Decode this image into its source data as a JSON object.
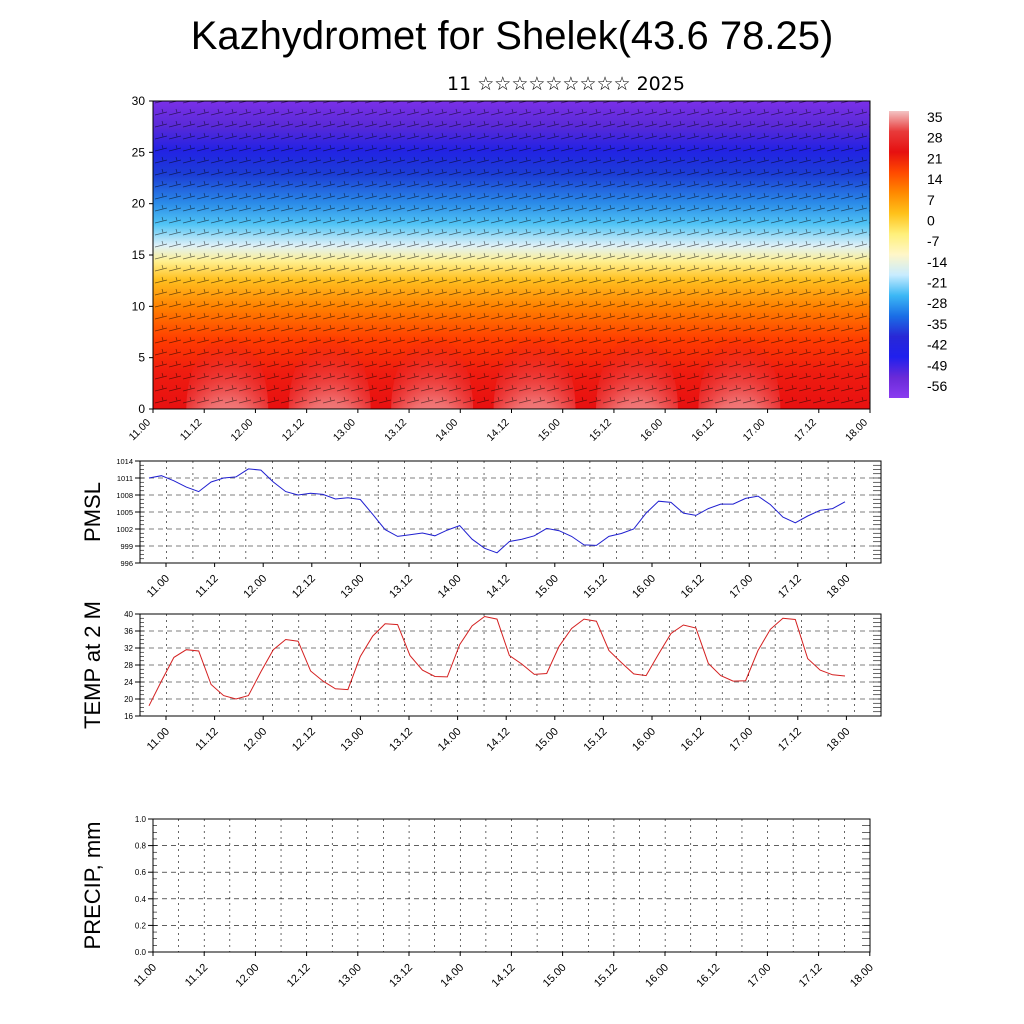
{
  "title": "Kazhydromet for Shelek(43.6 78.25)",
  "subtitle": "11 ☆☆☆☆☆☆☆☆☆ 2025",
  "x_tick_labels": [
    "11.00",
    "11.12",
    "12.00",
    "12.12",
    "13.00",
    "13.12",
    "14.00",
    "14.12",
    "15.00",
    "15.12",
    "16.00",
    "16.12",
    "17.00",
    "17.12",
    "18.00"
  ],
  "colors": {
    "pmsl_line": "#1f1fd0",
    "temp_line": "#d42020",
    "precip_line": "#1a3a1a",
    "frame": "#000000",
    "grid": "#000000"
  },
  "colorbar": {
    "labels": [
      "35",
      "28",
      "21",
      "14",
      "7",
      "0",
      "-7",
      "-14",
      "-21",
      "-28",
      "-35",
      "-42",
      "-49",
      "-56"
    ],
    "stops": [
      "#f3c4c4",
      "#e83a3a",
      "#e61010",
      "#ff4a00",
      "#ff8a00",
      "#ffc21a",
      "#fff07a",
      "#fff6c8",
      "#c8ecff",
      "#3cb8f5",
      "#1a6ee6",
      "#2828d6",
      "#2020ee",
      "#6a2ad8",
      "#8a3cf0"
    ]
  },
  "chart_data": [
    {
      "type": "heatmap",
      "name": "cross-section",
      "ylim": [
        0,
        30
      ],
      "y_ticks": [
        0,
        5,
        10,
        15,
        20,
        25,
        30
      ],
      "x_labels": [
        "11.00",
        "11.12",
        "12.00",
        "12.12",
        "13.00",
        "13.12",
        "14.00",
        "14.12",
        "15.00",
        "15.12",
        "16.00",
        "16.12",
        "17.00",
        "17.12",
        "18.00"
      ],
      "legend": "colorbar right",
      "colorbar_values": [
        35,
        28,
        21,
        14,
        7,
        0,
        -7,
        -14,
        -21,
        -28,
        -35,
        -42,
        -49,
        -56
      ]
    },
    {
      "type": "line",
      "name": "pmsl",
      "ylabel": "PMSL",
      "ylim": [
        996,
        1014
      ],
      "y_ticks": [
        996,
        999,
        1002,
        1005,
        1008,
        1011,
        1014
      ],
      "x_labels": [
        "11.00",
        "11.12",
        "12.00",
        "12.12",
        "13.00",
        "13.12",
        "14.00",
        "14.12",
        "15.00",
        "15.12",
        "16.00",
        "16.12",
        "17.00",
        "17.12",
        "18.00"
      ],
      "grid": true,
      "values": [
        1011.0,
        1011.4,
        1010.5,
        1009.4,
        1008.6,
        1010.3,
        1011.0,
        1011.2,
        1012.6,
        1012.4,
        1010.3,
        1008.6,
        1008.0,
        1008.3,
        1008.1,
        1007.3,
        1007.5,
        1007.2,
        1004.6,
        1001.9,
        1000.7,
        1001.0,
        1001.3,
        1000.8,
        1001.8,
        1002.6,
        1000.2,
        998.6,
        997.8,
        999.8,
        1000.2,
        1000.8,
        1002.1,
        1001.7,
        1000.7,
        999.2,
        999.1,
        1000.7,
        1001.2,
        1002.0,
        1004.8,
        1006.9,
        1006.7,
        1004.8,
        1004.4,
        1005.6,
        1006.4,
        1006.4,
        1007.4,
        1007.8,
        1006.3,
        1004.1,
        1003.1,
        1004.3,
        1005.3,
        1005.6,
        1006.8
      ]
    },
    {
      "type": "line",
      "name": "temp",
      "ylabel": "TEMP at 2 M",
      "ylim": [
        16,
        40
      ],
      "y_ticks": [
        16,
        20,
        24,
        28,
        32,
        36,
        40
      ],
      "x_labels": [
        "11.00",
        "11.12",
        "12.00",
        "12.12",
        "13.00",
        "13.12",
        "14.00",
        "14.12",
        "15.00",
        "15.12",
        "16.00",
        "16.12",
        "17.00",
        "17.12",
        "18.00"
      ],
      "grid": true,
      "values": [
        18.4,
        24.2,
        29.8,
        31.6,
        31.3,
        23.4,
        20.8,
        20.0,
        20.8,
        26.4,
        31.6,
        34.0,
        33.6,
        26.6,
        24.2,
        22.4,
        22.2,
        30.0,
        34.8,
        37.7,
        37.5,
        30.2,
        26.8,
        25.3,
        25.2,
        32.8,
        37.2,
        39.4,
        38.8,
        30.2,
        28.2,
        25.8,
        26.0,
        32.4,
        36.6,
        38.8,
        38.3,
        31.4,
        28.6,
        25.9,
        25.5,
        30.6,
        35.4,
        37.4,
        36.7,
        28.4,
        25.5,
        24.2,
        24.3,
        31.4,
        36.4,
        39.0,
        38.7,
        29.5,
        26.8,
        25.7,
        25.4
      ]
    },
    {
      "type": "line",
      "name": "precip",
      "ylabel": "PRECIP, mm",
      "ylim": [
        0,
        1
      ],
      "y_ticks": [
        "0.0",
        "0.2",
        "0.4",
        "0.6",
        "0.8",
        "1.0"
      ],
      "x_labels": [
        "11.00",
        "11.12",
        "12.00",
        "12.12",
        "13.00",
        "13.12",
        "14.00",
        "14.12",
        "15.00",
        "15.12",
        "16.00",
        "16.12",
        "17.00",
        "17.12",
        "18.00"
      ],
      "grid": true,
      "values": [
        0,
        0,
        0,
        0,
        0,
        0,
        0,
        0,
        0,
        0,
        0,
        0,
        0,
        0,
        0,
        0,
        0,
        0,
        0,
        0,
        0,
        0,
        0,
        0,
        0,
        0,
        0,
        0,
        0,
        0,
        0,
        0,
        0,
        0,
        0,
        0,
        0,
        0,
        0,
        0,
        0,
        0,
        0,
        0,
        0,
        0,
        0,
        0,
        0,
        0,
        0,
        0,
        0,
        0,
        0,
        0,
        0
      ]
    }
  ]
}
